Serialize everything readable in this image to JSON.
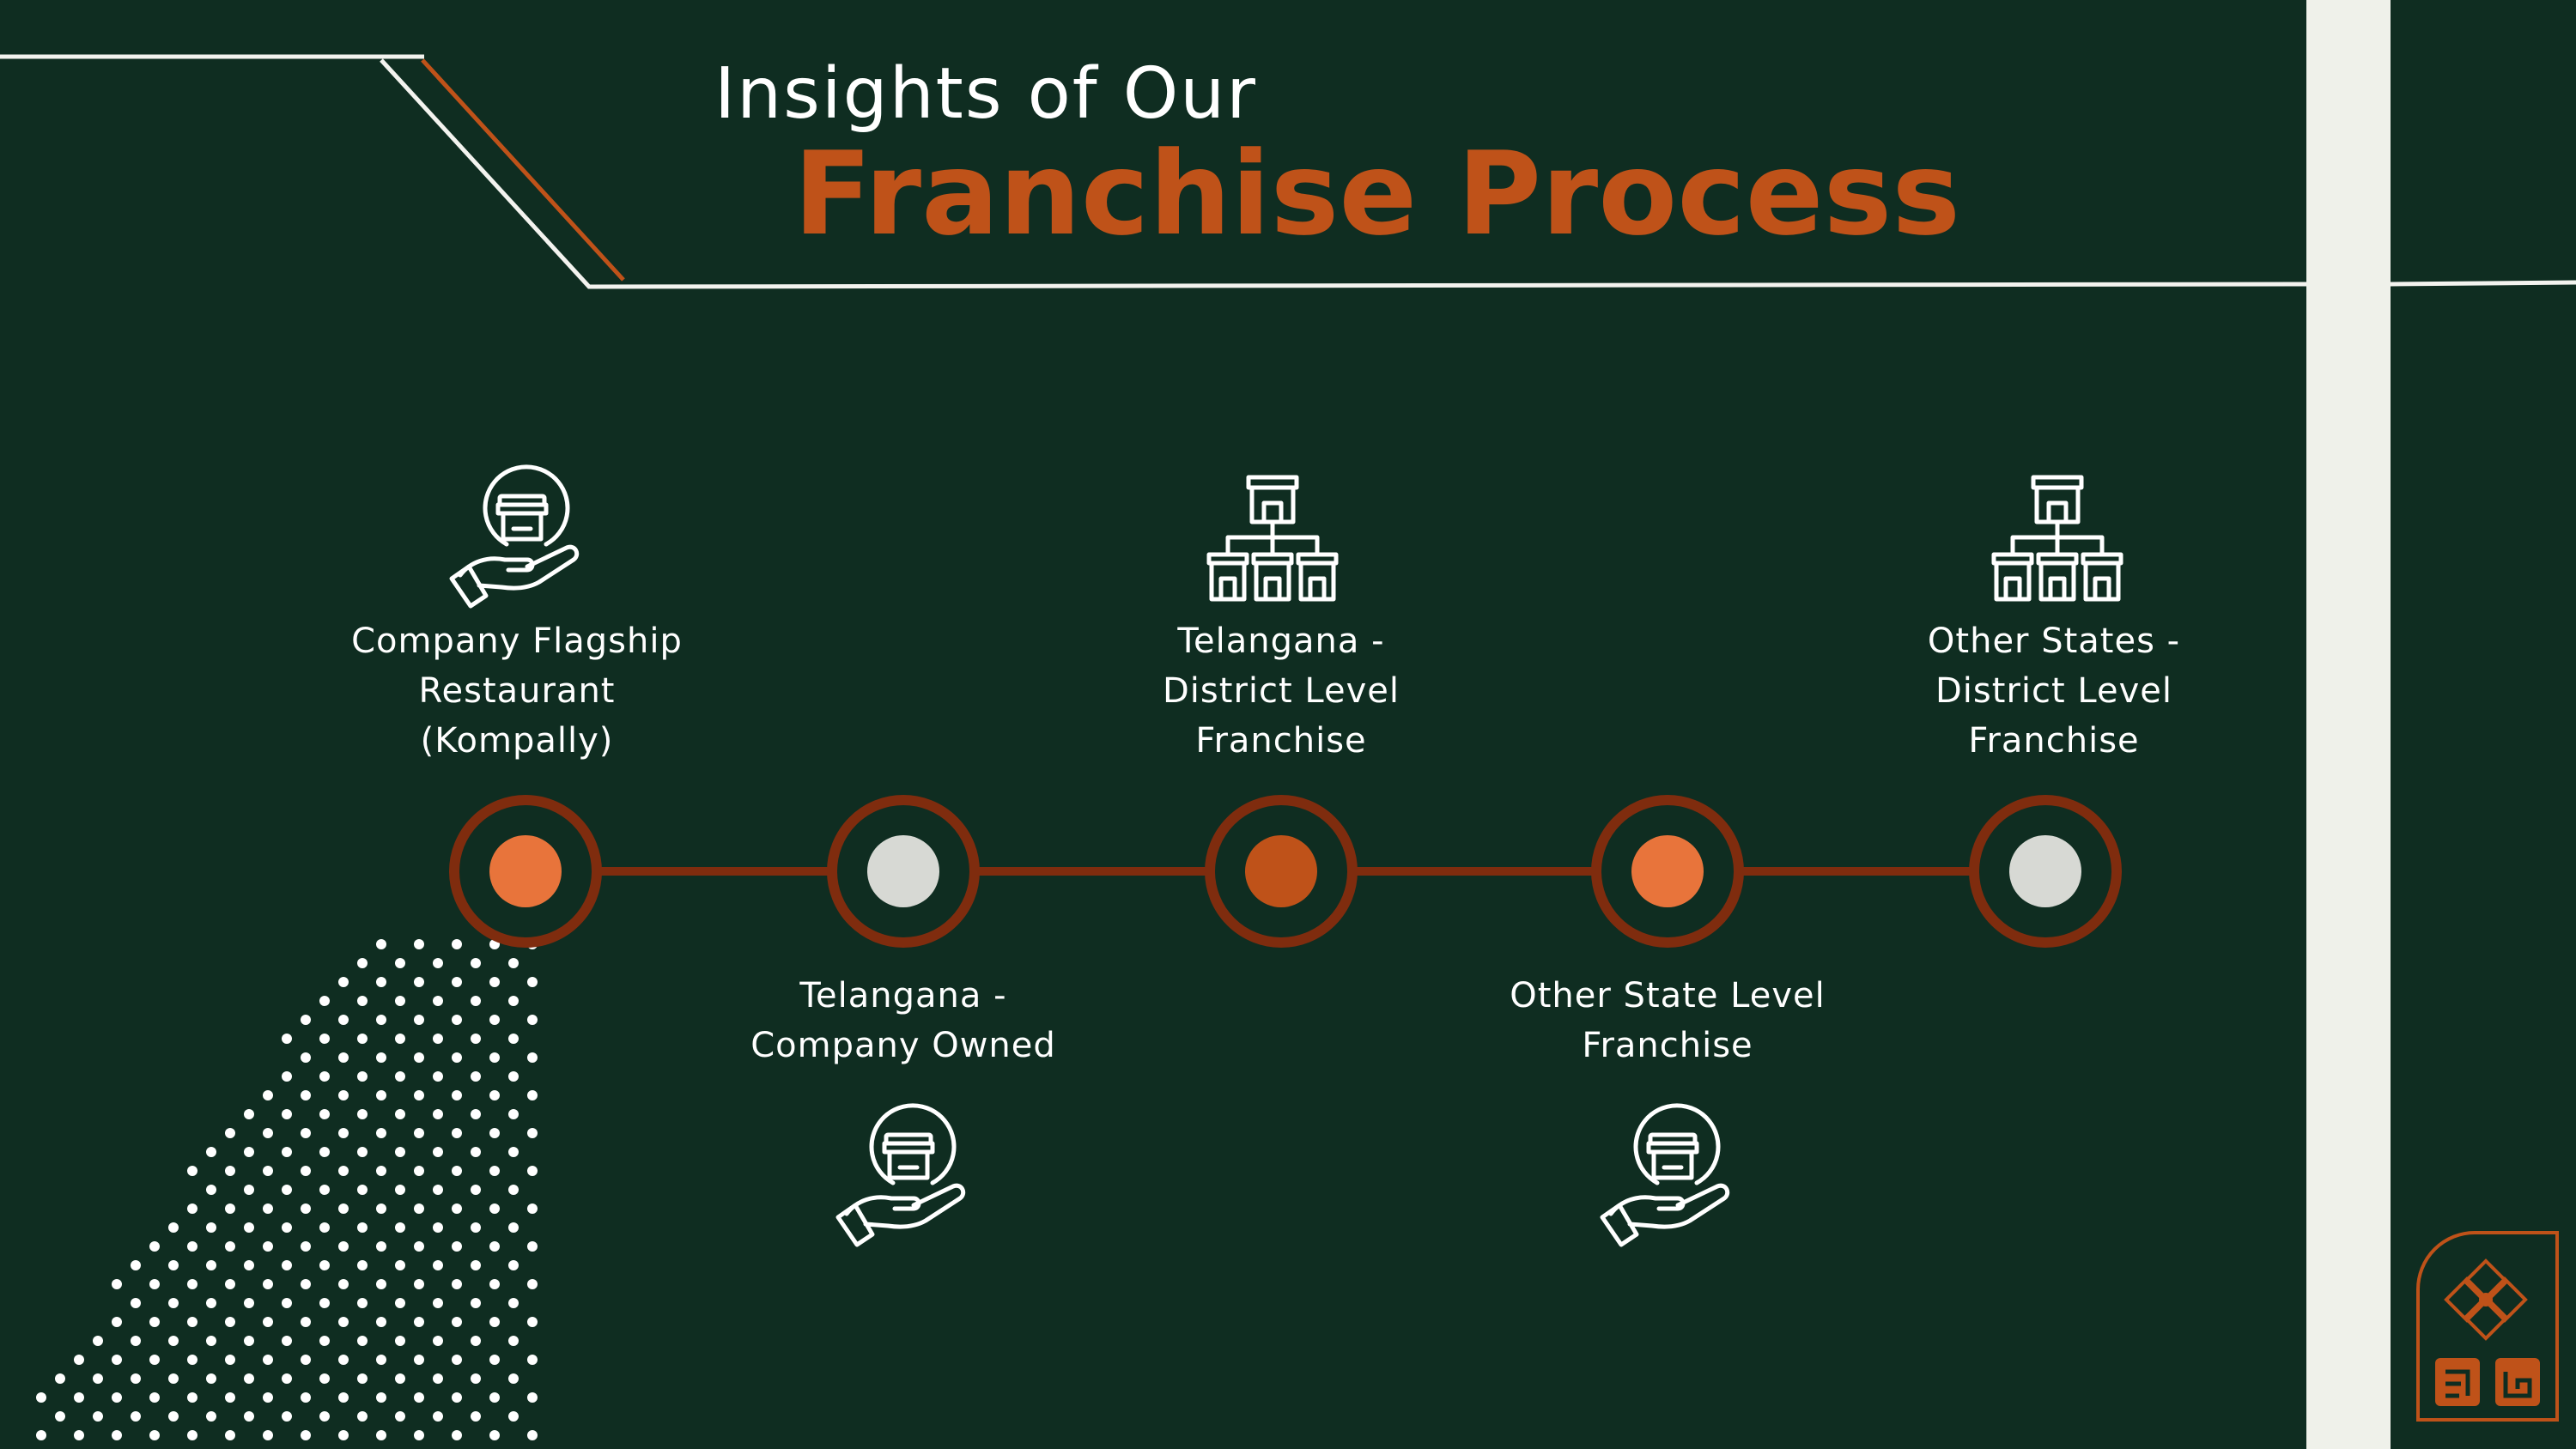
{
  "header": {
    "line1": "Insights of Our",
    "line2": "Franchise Process"
  },
  "colors": {
    "background": "#0f2d21",
    "accent": "#bf5219",
    "connector": "#7f2c0e",
    "dot_orange": "#e8743b",
    "dot_light": "#d7d9d4",
    "dot_dark_orange": "#bf5219",
    "strip": "#eff1ea"
  },
  "steps": [
    {
      "lines": [
        "Company Flagship",
        "Restaurant",
        "(Kompally)"
      ],
      "icon": "hand-store-icon",
      "dot": "orange"
    },
    {
      "lines": [
        "Telangana -",
        "Company Owned"
      ],
      "icon": "hand-store-icon",
      "dot": "light"
    },
    {
      "lines": [
        "Telangana -",
        "District Level",
        "Franchise"
      ],
      "icon": "store-network-icon",
      "dot": "dark_orange"
    },
    {
      "lines": [
        "Other State Level",
        "Franchise"
      ],
      "icon": "hand-store-icon",
      "dot": "orange"
    },
    {
      "lines": [
        "Other States -",
        "District  Level",
        "Franchise"
      ],
      "icon": "store-network-icon",
      "dot": "light"
    }
  ],
  "logo": {
    "icon": "ornament-logo-icon"
  }
}
